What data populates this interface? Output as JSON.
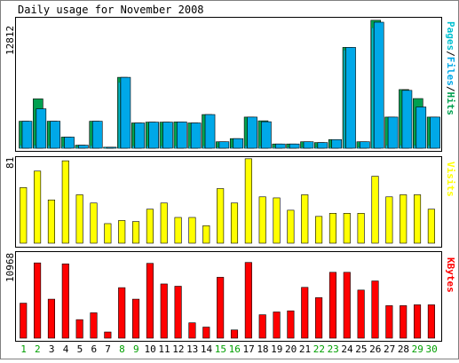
{
  "chart_data": [
    {
      "type": "bar",
      "title": "Daily usage for November 2008",
      "categories": [
        "1",
        "2",
        "3",
        "4",
        "5",
        "6",
        "7",
        "8",
        "9",
        "10",
        "11",
        "12",
        "13",
        "14",
        "15",
        "16",
        "17",
        "18",
        "19",
        "20",
        "21",
        "22",
        "23",
        "24",
        "25",
        "26",
        "27",
        "28",
        "29",
        "30"
      ],
      "weekend_days": [
        "1",
        "2",
        "8",
        "9",
        "15",
        "16",
        "22",
        "23",
        "29",
        "30"
      ],
      "ylabel": [
        "Pages",
        "/",
        "Files",
        "/",
        "Hits"
      ],
      "ymax_label": "12812",
      "ylim": [
        0,
        12812
      ],
      "series": [
        {
          "name": "Hits",
          "values": [
            2670,
            4880,
            2670,
            1100,
            300,
            2670,
            100,
            7010,
            2500,
            2580,
            2580,
            2600,
            2500,
            3330,
            640,
            950,
            3080,
            2710,
            420,
            420,
            640,
            560,
            850,
            9970,
            640,
            12650,
            3080,
            5800,
            4910,
            3080
          ]
        },
        {
          "name": "Files",
          "values": [
            2670,
            3900,
            2670,
            1100,
            300,
            2670,
            100,
            7010,
            2500,
            2580,
            2580,
            2600,
            2500,
            3330,
            640,
            950,
            3080,
            2620,
            420,
            420,
            640,
            560,
            850,
            9970,
            640,
            12460,
            3080,
            5720,
            4080,
            3080
          ]
        },
        {
          "name": "Pages",
          "values": [
            300,
            300,
            280,
            180,
            100,
            260,
            50,
            6500,
            230,
            230,
            230,
            230,
            230,
            250,
            70,
            90,
            250,
            230,
            60,
            60,
            60,
            60,
            80,
            9700,
            100,
            11900,
            300,
            300,
            300,
            300
          ]
        }
      ]
    },
    {
      "type": "bar",
      "ylabel": "Visits",
      "ymax_label": "81",
      "ylim": [
        0,
        81
      ],
      "series": [
        {
          "name": "Visits",
          "values": [
            54,
            70,
            42,
            80,
            47,
            39,
            19,
            22,
            21,
            33,
            39,
            25,
            25,
            17,
            53,
            39,
            82,
            45,
            44,
            32,
            47,
            26,
            29,
            29,
            29,
            65,
            45,
            47,
            47,
            33
          ]
        }
      ]
    },
    {
      "type": "bar",
      "ylabel": "KBytes",
      "ymax_label": "10968",
      "ylim": [
        0,
        10968
      ],
      "series": [
        {
          "name": "KBytes",
          "values": [
            4650,
            10000,
            5180,
            9870,
            2460,
            3370,
            820,
            6710,
            5180,
            9940,
            7200,
            6900,
            2040,
            1470,
            8090,
            1090,
            10060,
            3110,
            3480,
            3630,
            6750,
            5380,
            8750,
            8750,
            6390,
            7600,
            4320,
            4320,
            4430,
            4430
          ]
        }
      ]
    }
  ],
  "colors": {
    "hits": "#00a050",
    "files": "#00a8e8",
    "pages": "#00c0d0",
    "visits": "#ffff00",
    "kbytes": "#ff0000",
    "weekday_label": "#000000",
    "weekend_label": "#00a000"
  }
}
